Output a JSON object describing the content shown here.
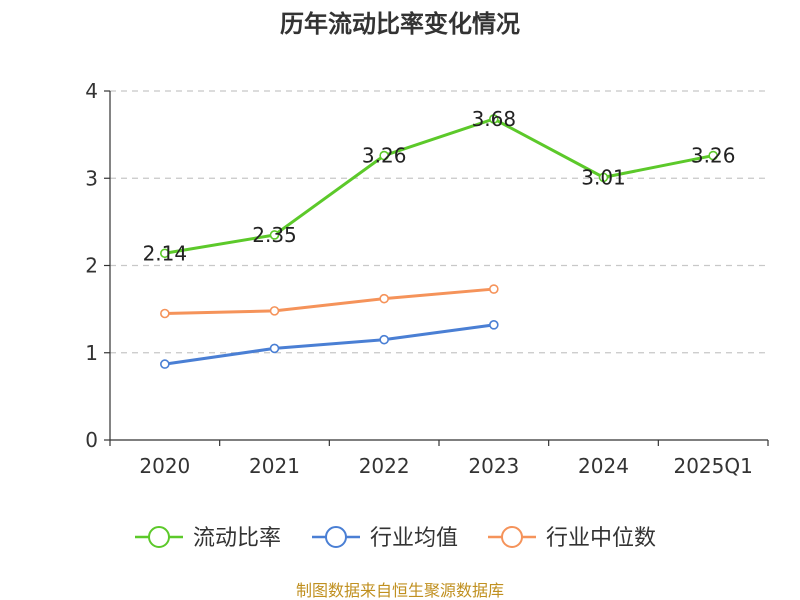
{
  "chart_data": {
    "type": "line",
    "title": "历年流动比率变化情况",
    "categories": [
      "2020",
      "2021",
      "2022",
      "2023",
      "2024",
      "2025Q1"
    ],
    "ylim": [
      0,
      4
    ],
    "yticks": [
      0,
      1,
      2,
      3,
      4
    ],
    "grid": true,
    "legend_position": "bottom",
    "series": [
      {
        "name": "流动比率",
        "color": "#5cc92a",
        "values": [
          2.14,
          2.35,
          3.26,
          3.68,
          3.01,
          3.26
        ],
        "labels": [
          "2.14",
          "2.35",
          "3.26",
          "3.68",
          "3.01",
          "3.26"
        ],
        "show_labels": true
      },
      {
        "name": "行业均值",
        "color": "#4a7fd4",
        "values": [
          0.87,
          1.05,
          1.15,
          1.32,
          null,
          null
        ],
        "show_labels": false
      },
      {
        "name": "行业中位数",
        "color": "#f5935a",
        "values": [
          1.45,
          1.48,
          1.62,
          1.73,
          null,
          null
        ],
        "show_labels": false
      }
    ],
    "source": "制图数据来自恒生聚源数据库"
  }
}
